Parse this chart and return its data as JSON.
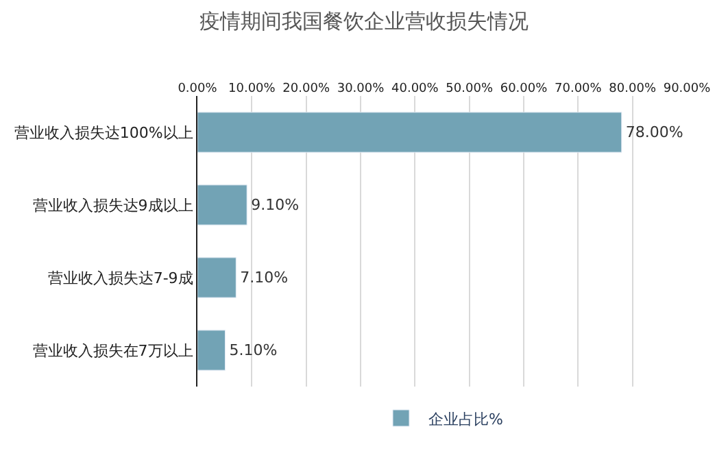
{
  "chart_data": {
    "type": "bar",
    "orientation": "horizontal",
    "title": "疫情期间我国餐饮企业营收损失情况",
    "categories": [
      "营业收入损失达100%以上",
      "营业收入损失达9成以上",
      "营业收入损失达7-9成",
      "营业收入损失在7万以上"
    ],
    "series": [
      {
        "name": "企业占比%",
        "color": "#72a3b5",
        "values": [
          78.0,
          9.1,
          7.1,
          5.1
        ],
        "value_labels": [
          "78.00%",
          "9.10%",
          "7.10%",
          "5.10%"
        ]
      }
    ],
    "xlim": [
      0,
      90
    ],
    "xticks": [
      {
        "value": 0,
        "label": "0.00%"
      },
      {
        "value": 10,
        "label": "10.00%"
      },
      {
        "value": 20,
        "label": "20.00%"
      },
      {
        "value": 30,
        "label": "30.00%"
      },
      {
        "value": 40,
        "label": "40.00%"
      },
      {
        "value": 50,
        "label": "50.00%"
      },
      {
        "value": 60,
        "label": "60.00%"
      },
      {
        "value": 70,
        "label": "70.00%"
      },
      {
        "value": 80,
        "label": "80.00%"
      },
      {
        "value": 90,
        "label": "90.00%"
      }
    ],
    "grid": "x",
    "legend": "bottom"
  }
}
